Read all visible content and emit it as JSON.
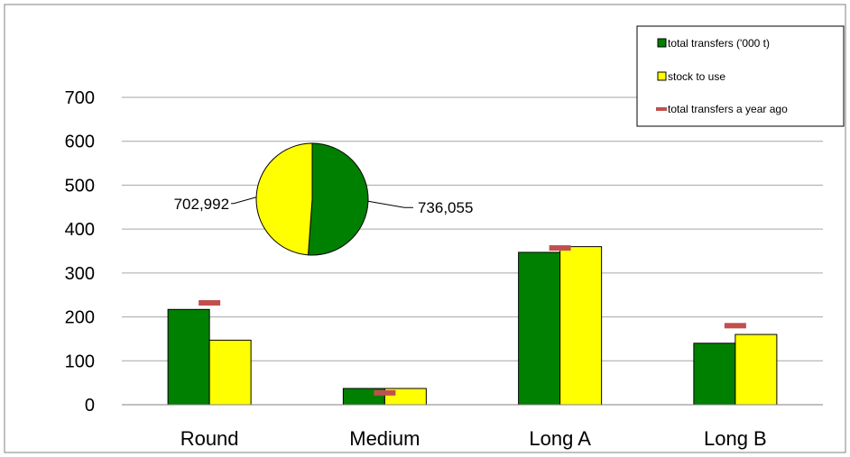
{
  "chart_data": {
    "type": "bar",
    "categories": [
      "Round",
      "Medium",
      "Long A",
      "Long B"
    ],
    "series": [
      {
        "name": "total transfers ('000 t)",
        "values": [
          217,
          37,
          347,
          140
        ],
        "color": "#008000",
        "kind": "bar"
      },
      {
        "name": "stock to use",
        "values": [
          147,
          37,
          360,
          160
        ],
        "color": "#FFFF00",
        "kind": "bar"
      },
      {
        "name": "total transfers a year ago",
        "values": [
          232,
          27,
          357,
          180
        ],
        "color": "#C0504D",
        "kind": "marker"
      }
    ],
    "ylim": [
      0,
      700
    ],
    "yticks": [
      0,
      100,
      200,
      300,
      400,
      500,
      600,
      700
    ],
    "grid": true,
    "legend_position": "top-right",
    "inset_pie": {
      "type": "pie",
      "slices": [
        {
          "value": 736055,
          "label": "736,055",
          "color": "#008000"
        },
        {
          "value": 702992,
          "label": "702,992",
          "color": "#FFFF00"
        }
      ]
    }
  }
}
